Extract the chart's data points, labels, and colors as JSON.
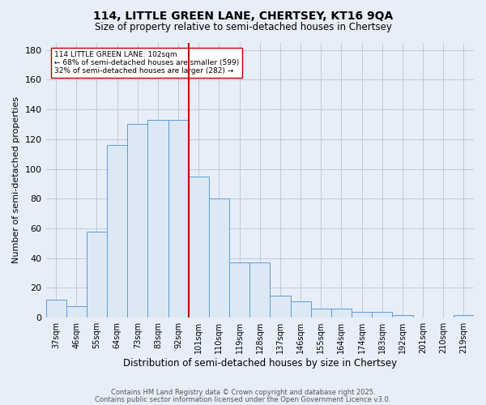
{
  "title1": "114, LITTLE GREEN LANE, CHERTSEY, KT16 9QA",
  "title2": "Size of property relative to semi-detached houses in Chertsey",
  "xlabel": "Distribution of semi-detached houses by size in Chertsey",
  "ylabel": "Number of semi-detached properties",
  "bins": [
    "37sqm",
    "46sqm",
    "55sqm",
    "64sqm",
    "73sqm",
    "83sqm",
    "92sqm",
    "101sqm",
    "110sqm",
    "119sqm",
    "128sqm",
    "137sqm",
    "146sqm",
    "155sqm",
    "164sqm",
    "174sqm",
    "183sqm",
    "192sqm",
    "201sqm",
    "210sqm",
    "219sqm"
  ],
  "counts": [
    12,
    8,
    58,
    116,
    130,
    133,
    133,
    95,
    80,
    37,
    37,
    15,
    11,
    6,
    6,
    4,
    4,
    2,
    0,
    0,
    2
  ],
  "marker_bin_index": 7,
  "annotation_line1": "114 LITTLE GREEN LANE: 102sqm",
  "annotation_line2": "← 68% of semi-detached houses are smaller (599)",
  "annotation_line3": "32% of semi-detached houses are larger (282) →",
  "bar_facecolor": "#dce9f5",
  "bar_edgecolor": "#5b9bd5",
  "marker_color": "#c00000",
  "background_color": "#e8eef8",
  "annotation_box_edgecolor": "#c00000",
  "annotation_box_facecolor": "white",
  "footer1": "Contains HM Land Registry data © Crown copyright and database right 2025.",
  "footer2": "Contains public sector information licensed under the Open Government Licence v3.0.",
  "ylim": [
    0,
    185
  ],
  "yticks": [
    0,
    20,
    40,
    60,
    80,
    100,
    120,
    140,
    160,
    180
  ]
}
